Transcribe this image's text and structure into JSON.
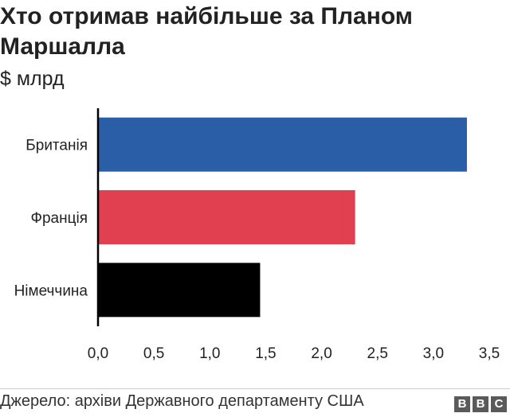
{
  "chart_data": {
    "type": "bar",
    "orientation": "horizontal",
    "title": "Хто отримав найбільше за Планом Маршалла",
    "subtitle": "$ млрд",
    "categories": [
      "Британія",
      "Франція",
      "Німеччина"
    ],
    "values": [
      3.3,
      2.3,
      1.45
    ],
    "colors": [
      "#2a5ea6",
      "#e0404f",
      "#000000"
    ],
    "xlim": [
      0,
      3.5
    ],
    "x_ticks": [
      "0,0",
      "0,5",
      "1,0",
      "1,5",
      "2,0",
      "2,5",
      "3,0",
      "3,5"
    ],
    "x_tick_values": [
      0,
      0.5,
      1.0,
      1.5,
      2.0,
      2.5,
      3.0,
      3.5
    ],
    "grid": false,
    "xlabel": "",
    "ylabel": ""
  },
  "footer": {
    "source": "Джерело: архіви Державного департаменту США",
    "logo_letters": [
      "B",
      "B",
      "C"
    ]
  }
}
